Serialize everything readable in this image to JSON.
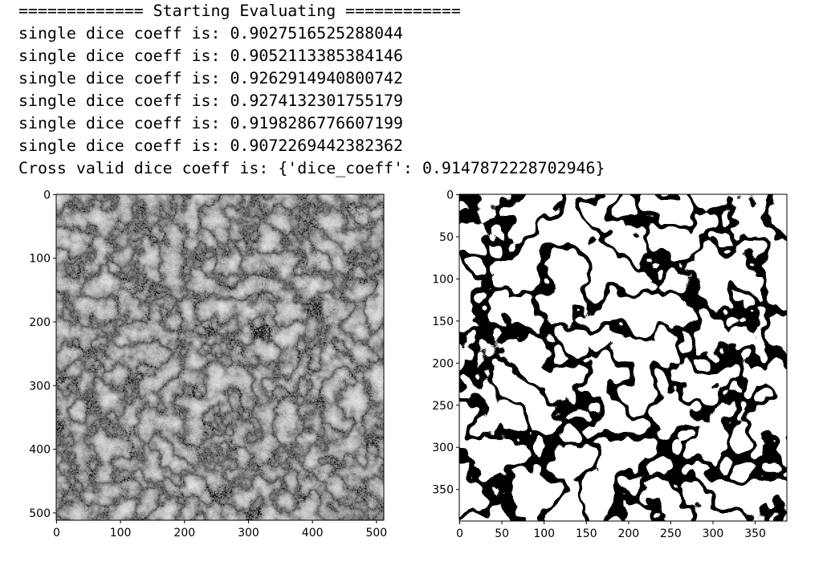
{
  "console": {
    "lines": [
      "============= Starting Evaluating ============",
      "single dice coeff is: 0.9027516525288044",
      "single dice coeff is: 0.9052113385384146",
      "single dice coeff is: 0.9262914940800742",
      "single dice coeff is: 0.9274132301755179",
      "single dice coeff is: 0.9198286776607199",
      "single dice coeff is: 0.9072269442382362",
      "Cross valid dice coeff is: {'dice_coeff': 0.9147872228702946}"
    ]
  },
  "plots": [
    {
      "type": "image",
      "xlim": [
        -0.5,
        511.5
      ],
      "ylim": [
        511.5,
        -0.5
      ],
      "xticks": [
        0,
        100,
        200,
        300,
        400,
        500
      ],
      "yticks": [
        0,
        100,
        200,
        300,
        400,
        500
      ]
    },
    {
      "type": "image",
      "xlim": [
        -0.5,
        387.5
      ],
      "ylim": [
        387.5,
        -0.5
      ],
      "xticks": [
        0,
        50,
        100,
        150,
        200,
        250,
        300,
        350
      ],
      "yticks": [
        0,
        50,
        100,
        150,
        200,
        250,
        300,
        350
      ]
    }
  ]
}
